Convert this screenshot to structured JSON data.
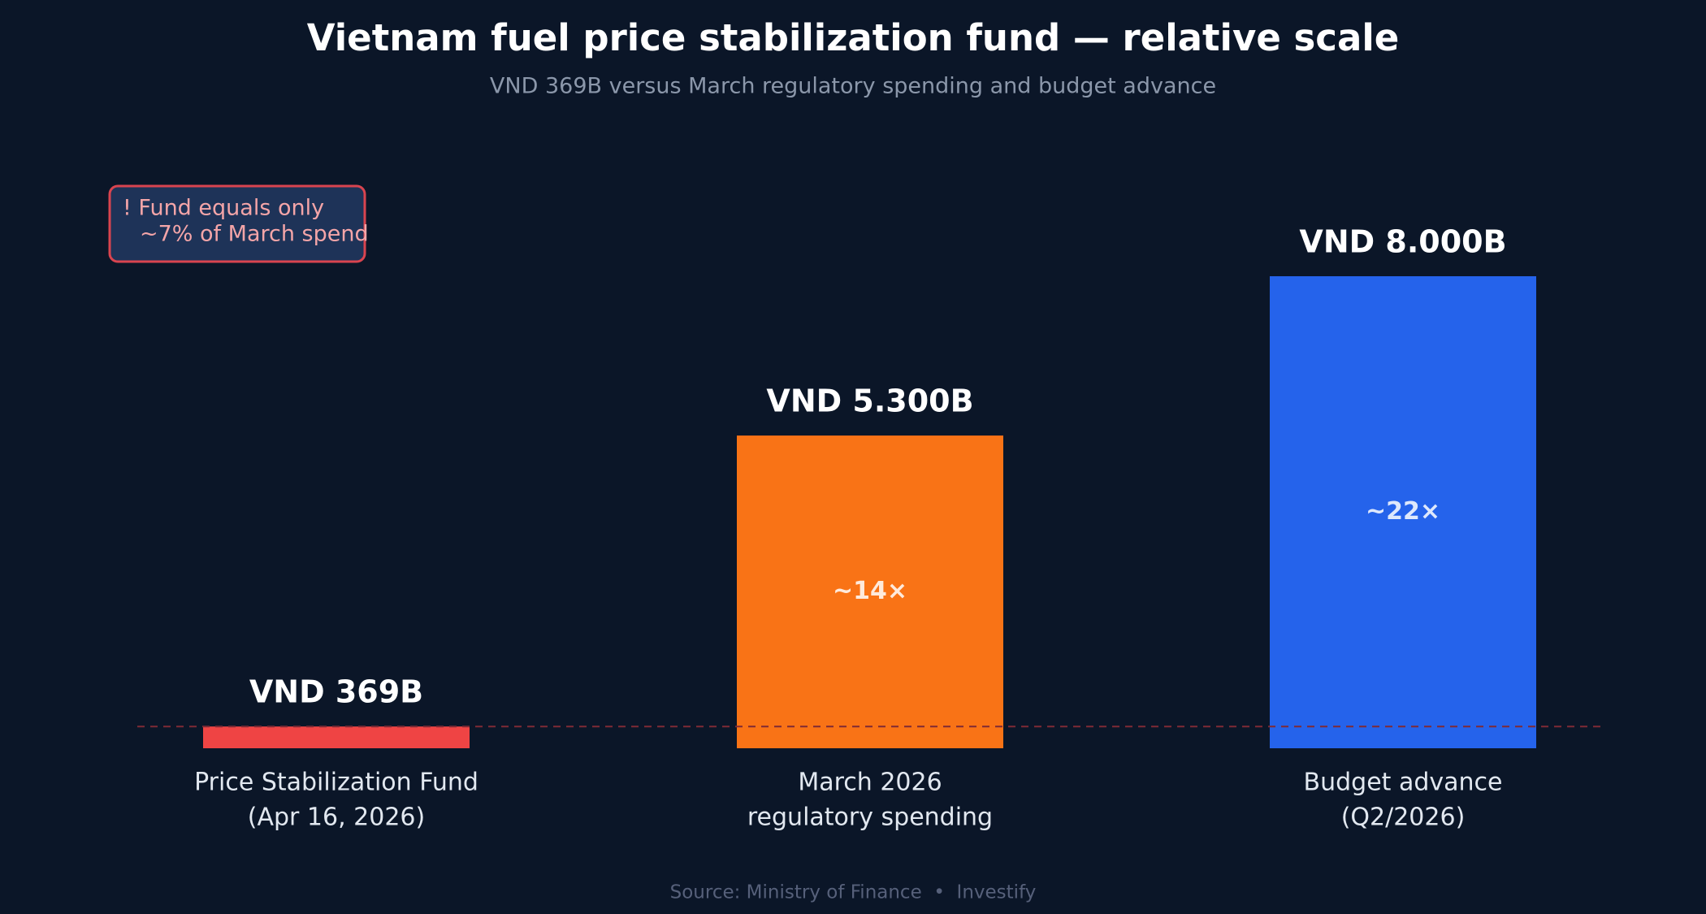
{
  "chart_data": {
    "type": "bar",
    "title": "Vietnam fuel price stabilization fund — relative scale",
    "subtitle": "VND 369B versus March regulatory spending and budget advance",
    "categories": [
      [
        "Price Stabilization Fund",
        "(Apr 16, 2026)"
      ],
      [
        "March 2026",
        "regulatory spending"
      ],
      [
        "Budget advance",
        "(Q2/2026)"
      ]
    ],
    "values": [
      369,
      5300,
      8000
    ],
    "value_labels": [
      "VND 369B",
      "VND 5.300B",
      "VND 8.000B"
    ],
    "inner_labels": [
      null,
      "~14×",
      "~22×"
    ],
    "colors": [
      "#ef4444",
      "#f97316",
      "#2563eb"
    ],
    "ylim": [
      0,
      8000
    ],
    "reference_value": 369,
    "reference_color": "#7f2a35",
    "annotation": [
      "! Fund equals only",
      "~7% of March spend"
    ],
    "source": "Source: Ministry of Finance  •  Investify"
  }
}
